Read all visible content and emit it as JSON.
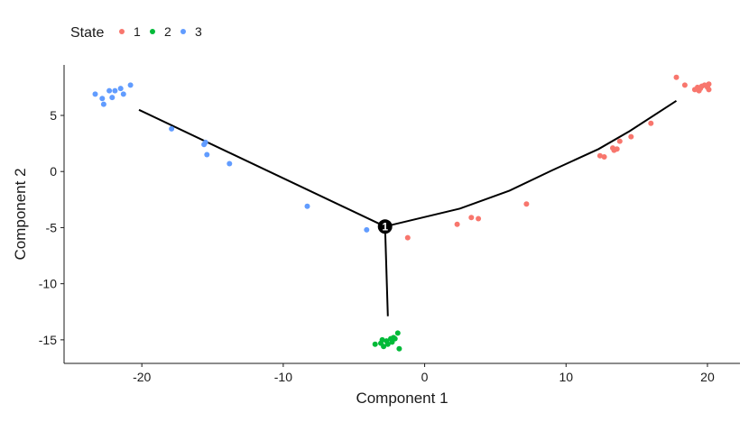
{
  "chart_data": {
    "type": "scatter",
    "xlabel": "Component 1",
    "ylabel": "Component 2",
    "xlim": [
      -25.5,
      22.3
    ],
    "ylim": [
      -17.1,
      9.5
    ],
    "x_ticks": [
      -20,
      -10,
      0,
      10,
      20
    ],
    "y_ticks": [
      5,
      0,
      -5,
      -10,
      -15
    ],
    "grid": false,
    "legend": {
      "title": "State",
      "placement": "top-left",
      "entries": [
        {
          "label": "1",
          "color": "#F8766D"
        },
        {
          "label": "2",
          "color": "#00BA38"
        },
        {
          "label": "3",
          "color": "#619CFF"
        }
      ]
    },
    "series": [
      {
        "name": "1",
        "color": "#F8766D",
        "points": [
          [
            -1.2,
            -5.9
          ],
          [
            2.3,
            -4.7
          ],
          [
            3.3,
            -4.1
          ],
          [
            3.8,
            -4.2
          ],
          [
            7.2,
            -2.9
          ],
          [
            12.4,
            1.4
          ],
          [
            12.7,
            1.3
          ],
          [
            13.3,
            2.1
          ],
          [
            13.4,
            1.9
          ],
          [
            13.6,
            2.0
          ],
          [
            13.8,
            2.7
          ],
          [
            14.6,
            3.1
          ],
          [
            16.0,
            4.3
          ],
          [
            17.8,
            8.4
          ],
          [
            18.4,
            7.7
          ],
          [
            19.1,
            7.3
          ],
          [
            19.3,
            7.5
          ],
          [
            19.4,
            7.2
          ],
          [
            19.5,
            7.4
          ],
          [
            19.6,
            7.6
          ],
          [
            19.8,
            7.7
          ],
          [
            20.0,
            7.5
          ],
          [
            20.1,
            7.8
          ],
          [
            20.1,
            7.3
          ]
        ]
      },
      {
        "name": "2",
        "color": "#00BA38",
        "points": [
          [
            -3.5,
            -15.4
          ],
          [
            -3.1,
            -15.3
          ],
          [
            -2.9,
            -15.6
          ],
          [
            -2.7,
            -15.1
          ],
          [
            -2.6,
            -15.4
          ],
          [
            -2.4,
            -14.9
          ],
          [
            -2.3,
            -15.2
          ],
          [
            -2.2,
            -14.8
          ],
          [
            -2.1,
            -14.9
          ],
          [
            -1.9,
            -14.4
          ],
          [
            -1.8,
            -15.8
          ],
          [
            -3.0,
            -15.0
          ]
        ]
      },
      {
        "name": "3",
        "color": "#619CFF",
        "points": [
          [
            -23.3,
            6.9
          ],
          [
            -22.8,
            6.5
          ],
          [
            -22.7,
            6.0
          ],
          [
            -22.3,
            7.2
          ],
          [
            -22.1,
            6.6
          ],
          [
            -21.9,
            7.2
          ],
          [
            -21.5,
            7.4
          ],
          [
            -21.3,
            6.9
          ],
          [
            -20.8,
            7.7
          ],
          [
            -17.9,
            3.8
          ],
          [
            -15.6,
            2.4
          ],
          [
            -15.5,
            2.6
          ],
          [
            -15.4,
            1.5
          ],
          [
            -13.8,
            0.7
          ],
          [
            -8.3,
            -3.1
          ],
          [
            -4.1,
            -5.2
          ]
        ]
      }
    ],
    "trajectory": {
      "color": "#000000",
      "paths": [
        [
          [
            -20.2,
            5.5
          ],
          [
            -2.8,
            -4.9
          ]
        ],
        [
          [
            -2.8,
            -4.9
          ],
          [
            2.5,
            -3.3
          ],
          [
            6.0,
            -1.7
          ],
          [
            9.0,
            0.1
          ],
          [
            12.3,
            2.0
          ],
          [
            14.5,
            3.6
          ],
          [
            17.8,
            6.3
          ]
        ],
        [
          [
            -2.8,
            -4.9
          ],
          [
            -2.6,
            -12.9
          ]
        ]
      ],
      "branch_point": {
        "x": -2.8,
        "y": -4.9,
        "label": "1"
      }
    }
  }
}
